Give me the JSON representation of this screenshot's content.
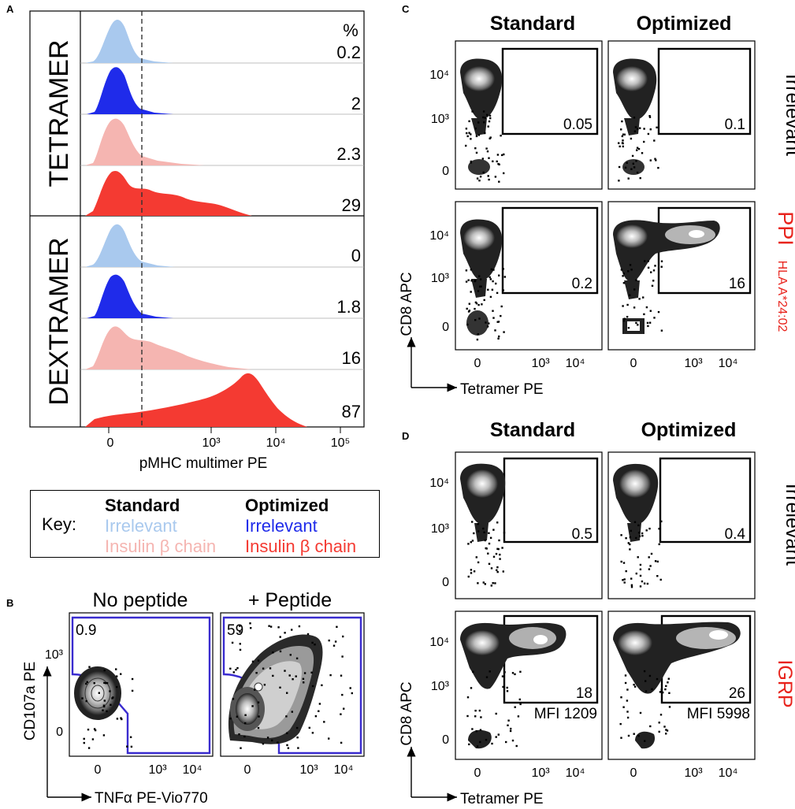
{
  "panels": {
    "a": "A",
    "b": "B",
    "c": "C",
    "d": "D"
  },
  "panel_a": {
    "percent_header": "%",
    "groups": [
      "TETRAMER",
      "DEXTRAMER"
    ],
    "x_axis_title": "pMHC multimer PE",
    "x_ticks": [
      "0",
      "10³",
      "10⁴",
      "10⁵"
    ]
  },
  "key": {
    "label": "Key:",
    "standard_header": "Standard",
    "optimized_header": "Optimized",
    "standard_items": [
      "Irrelevant",
      "Insulin β chain"
    ],
    "optimized_items": [
      "Irrelevant",
      "Insulin β chain"
    ]
  },
  "panel_b": {
    "titles": [
      "No peptide",
      "+ Peptide"
    ],
    "gate_values": [
      "0.9",
      "59"
    ],
    "y_axis_title": "CD107a PE",
    "x_axis_title": "TNFα PE-Vio770",
    "y_ticks": [
      "10³",
      "0"
    ],
    "x_ticks": [
      "0",
      "10³",
      "10⁴"
    ]
  },
  "panel_c": {
    "column_titles": [
      "Standard",
      "Optimized"
    ],
    "row_labels": [
      "Irrelevant",
      "PPI"
    ],
    "row_sublabel": "HLA A*24:02",
    "gate_values": [
      "0.05",
      "0.1",
      "0.2",
      "16"
    ],
    "y_axis_title": "CD8 APC",
    "x_axis_title": "Tetramer PE",
    "y_ticks": [
      "10⁴",
      "10³",
      "0"
    ],
    "x_ticks": [
      "0",
      "10³",
      "10⁴"
    ]
  },
  "panel_d": {
    "column_titles": [
      "Standard",
      "Optimized"
    ],
    "row_labels": [
      "Irrelevant",
      "IGRP"
    ],
    "gate_values": [
      "0.5",
      "0.4",
      "18",
      "26"
    ],
    "mfi_values": [
      "MFI 1209",
      "MFI 5998"
    ],
    "y_axis_title": "CD8 APC",
    "x_axis_title": "Tetramer PE",
    "y_ticks": [
      "10⁴",
      "10³",
      "0"
    ],
    "x_ticks": [
      "0",
      "10³",
      "10⁴"
    ]
  },
  "colors": {
    "standard_irrelevant": "#a9c9ee",
    "optimized_irrelevant": "#1f2bea",
    "standard_insulin": "#f5b5b1",
    "optimized_insulin": "#f43a32",
    "gate_blue": "#3a2ccf",
    "ppi_red": "#e8231c"
  },
  "chart_data": [
    {
      "type": "area",
      "title": "Panel A",
      "xlabel": "pMHC multimer PE",
      "x_ticks": [
        "0",
        "10³",
        "10⁴",
        "10⁵"
      ],
      "series": [
        {
          "name": "Tetramer Standard Irrelevant",
          "value": 0.2
        },
        {
          "name": "Tetramer Optimized Irrelevant",
          "value": 2
        },
        {
          "name": "Tetramer Standard Insulin β chain",
          "value": 2.3
        },
        {
          "name": "Tetramer Optimized Insulin β chain",
          "value": 29
        },
        {
          "name": "Dextramer Standard Irrelevant",
          "value": 0
        },
        {
          "name": "Dextramer Optimized Irrelevant",
          "value": 1.8
        },
        {
          "name": "Dextramer Standard Insulin β chain",
          "value": 16
        },
        {
          "name": "Dextramer Optimized Insulin β chain",
          "value": 87
        }
      ]
    },
    {
      "type": "scatter",
      "title": "Panel B",
      "xlabel": "TNFα PE-Vio770",
      "ylabel": "CD107a PE",
      "categories": [
        "No peptide",
        "+ Peptide"
      ],
      "values": [
        0.9,
        59
      ]
    },
    {
      "type": "scatter",
      "title": "Panel C",
      "xlabel": "Tetramer PE",
      "ylabel": "CD8 APC",
      "series": [
        {
          "name": "Irrelevant",
          "categories": [
            "Standard",
            "Optimized"
          ],
          "values": [
            0.05,
            0.1
          ]
        },
        {
          "name": "PPI HLA A*24:02",
          "categories": [
            "Standard",
            "Optimized"
          ],
          "values": [
            0.2,
            16
          ]
        }
      ]
    },
    {
      "type": "scatter",
      "title": "Panel D",
      "xlabel": "Tetramer PE",
      "ylabel": "CD8 APC",
      "series": [
        {
          "name": "Irrelevant",
          "categories": [
            "Standard",
            "Optimized"
          ],
          "values": [
            0.5,
            0.4
          ]
        },
        {
          "name": "IGRP",
          "categories": [
            "Standard",
            "Optimized"
          ],
          "values": [
            18,
            26
          ],
          "mfi": [
            1209,
            5998
          ]
        }
      ]
    }
  ]
}
